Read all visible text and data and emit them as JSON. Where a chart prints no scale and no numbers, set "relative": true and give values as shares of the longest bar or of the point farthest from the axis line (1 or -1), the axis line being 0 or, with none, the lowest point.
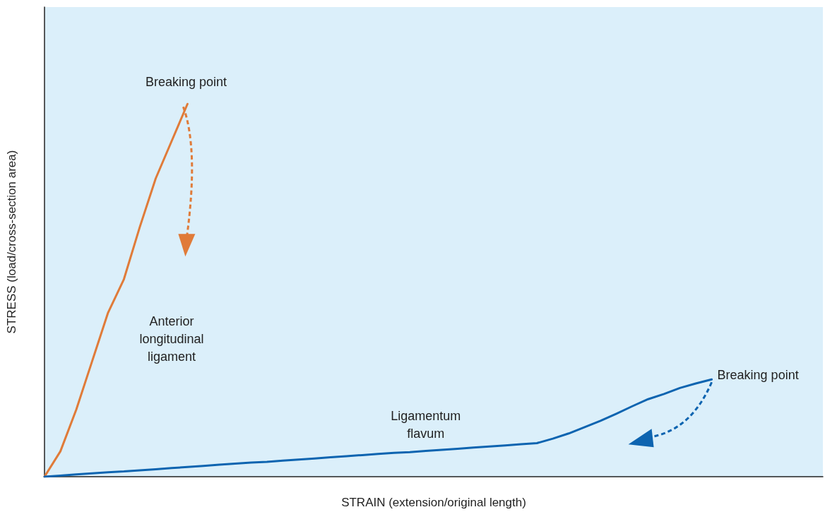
{
  "chart_data": {
    "type": "line",
    "relative": true,
    "xlabel": "STRAIN (extension/original length)",
    "ylabel": "STRESS (load/cross-section area)",
    "categories": [
      null,
      null,
      null,
      null,
      null,
      null,
      null,
      null,
      null,
      null,
      null,
      null,
      null,
      null,
      null,
      null,
      null,
      null,
      null,
      null,
      null,
      null,
      null,
      null,
      null,
      null,
      null,
      null,
      null,
      null,
      null,
      null,
      null,
      null,
      null,
      null,
      null,
      null,
      null,
      null,
      null,
      null,
      null,
      null,
      null,
      null,
      null,
      null,
      null,
      null
    ],
    "series": [
      {
        "name": "Anterior longitudinal ligament",
        "color": "#e07b39",
        "values": [
          0,
          0.068,
          0.18,
          0.31,
          0.44,
          0.53,
          0.67,
          0.8,
          0.9,
          1,
          null,
          null,
          null,
          null,
          null,
          null,
          null,
          null,
          null,
          null,
          null,
          null,
          null,
          null,
          null,
          null,
          null,
          null,
          null,
          null,
          null,
          null,
          null,
          null,
          null,
          null,
          null,
          null,
          null,
          null,
          null,
          null,
          null,
          null,
          null,
          null,
          null,
          null,
          null,
          null
        ]
      },
      {
        "name": "Ligamentum flavum",
        "color": "#0d64b0",
        "values": [
          0,
          0.003,
          0.006,
          0.009,
          0.012,
          0.014,
          0.017,
          0.02,
          0.023,
          0.026,
          0.029,
          0.032,
          0.035,
          0.038,
          0.04,
          0.043,
          0.046,
          0.049,
          0.052,
          0.055,
          0.058,
          0.061,
          0.064,
          0.066,
          0.069,
          0.072,
          0.075,
          0.078,
          0.081,
          0.084,
          0.087,
          0.09,
          0.102,
          0.116,
          0.133,
          0.15,
          0.169,
          0.189,
          0.208,
          0.222,
          0.238,
          0.25,
          0.261,
          null,
          null,
          null,
          null,
          null,
          null,
          null
        ]
      }
    ],
    "annotations": [
      "Breaking point",
      "Breaking point"
    ],
    "legend": false,
    "grid": false,
    "marker": "none",
    "line_style": "solid"
  }
}
